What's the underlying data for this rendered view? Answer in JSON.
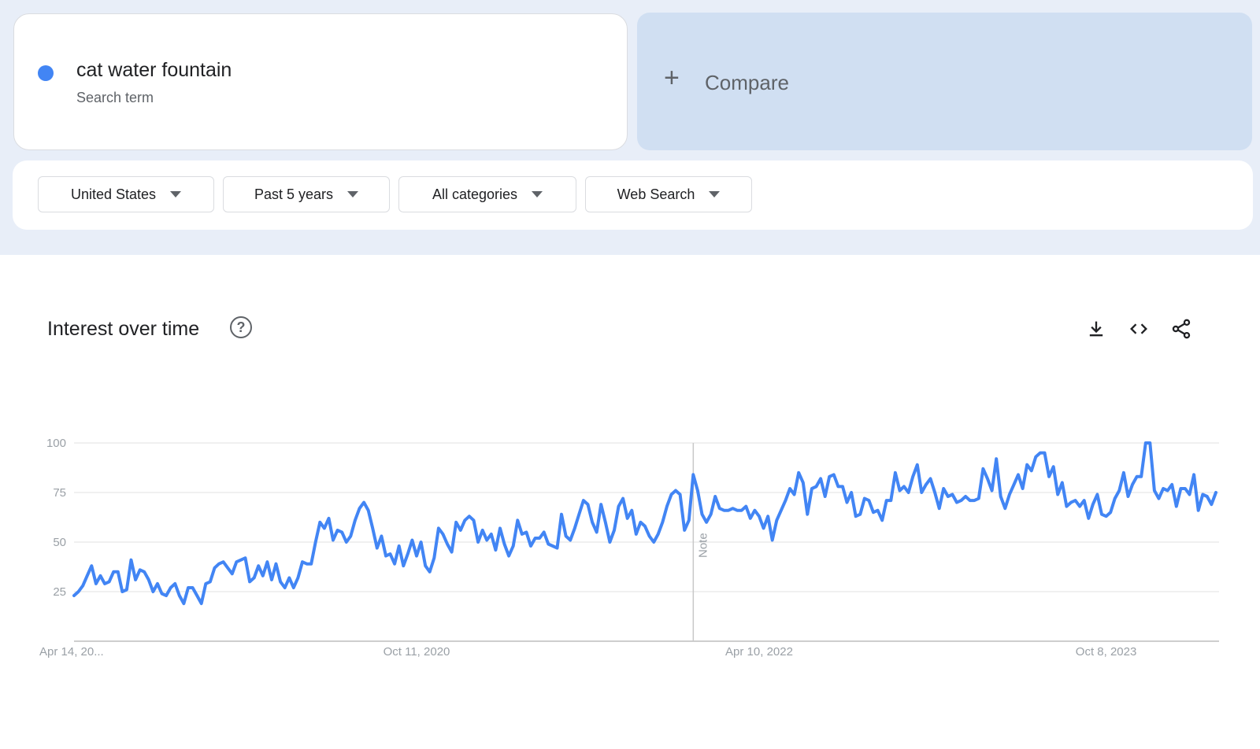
{
  "search_term": {
    "name": "cat water fountain",
    "subtitle": "Search term",
    "color": "#4285f4"
  },
  "compare": {
    "plus": "+",
    "label": "Compare"
  },
  "filters": [
    {
      "label": "United States"
    },
    {
      "label": "Past 5 years"
    },
    {
      "label": "All categories"
    },
    {
      "label": "Web Search"
    }
  ],
  "interest": {
    "title": "Interest over time",
    "help_icon": "?",
    "icons": [
      "download-icon",
      "embed-icon",
      "share-icon"
    ]
  },
  "chart_data": {
    "type": "line",
    "x_tick_labels": [
      "Apr 14, 20...",
      "Oct 11, 2020",
      "Apr 10, 2022",
      "Oct 8, 2023"
    ],
    "y_ticks": [
      25,
      50,
      75,
      100
    ],
    "ylim": [
      0,
      100
    ],
    "grid": true,
    "note_label": "Note",
    "series": [
      {
        "color": "#4285f4",
        "values": [
          23,
          25,
          28,
          33,
          38,
          29,
          33,
          29,
          30,
          35,
          35,
          25,
          26,
          41,
          31,
          36,
          35,
          31,
          25,
          29,
          24,
          23,
          27,
          29,
          23,
          19,
          27,
          27,
          23,
          19,
          29,
          30,
          37,
          39,
          40,
          37,
          34,
          40,
          41,
          42,
          30,
          32,
          38,
          33,
          40,
          31,
          39,
          30,
          27,
          32,
          27,
          32,
          40,
          39,
          39,
          50,
          60,
          57,
          62,
          51,
          56,
          55,
          50,
          53,
          61,
          67,
          70,
          66,
          57,
          47,
          53,
          43,
          44,
          39,
          48,
          38,
          44,
          51,
          43,
          50,
          38,
          35,
          42,
          57,
          54,
          49,
          45,
          60,
          56,
          61,
          63,
          61,
          50,
          56,
          51,
          54,
          46,
          57,
          49,
          43,
          48,
          61,
          54,
          55,
          48,
          52,
          52,
          55,
          49,
          48,
          47,
          64,
          53,
          51,
          57,
          64,
          71,
          69,
          60,
          55,
          69,
          60,
          50,
          56,
          68,
          72,
          62,
          66,
          54,
          60,
          58,
          53,
          50,
          54,
          60,
          68,
          74,
          76,
          74,
          56,
          61,
          84,
          76,
          64,
          60,
          64,
          73,
          67,
          66,
          66,
          67,
          66,
          66,
          68,
          62,
          66,
          63,
          57,
          63,
          51,
          61,
          66,
          71,
          77,
          74,
          85,
          80,
          64,
          77,
          78,
          82,
          73,
          83,
          84,
          78,
          78,
          70,
          75,
          63,
          64,
          72,
          71,
          65,
          66,
          61,
          71,
          71,
          85,
          76,
          78,
          75,
          83,
          89,
          75,
          79,
          82,
          75,
          67,
          77,
          73,
          74,
          70,
          71,
          73,
          71,
          71,
          72,
          87,
          82,
          76,
          92,
          73,
          67,
          74,
          79,
          84,
          77,
          89,
          86,
          93,
          95,
          95,
          83,
          88,
          74,
          80,
          68,
          70,
          71,
          68,
          71,
          62,
          69,
          74,
          64,
          63,
          65,
          72,
          76,
          85,
          73,
          79,
          83,
          83,
          100,
          100,
          76,
          72,
          77,
          76,
          79,
          68,
          77,
          77,
          74,
          84,
          66,
          74,
          73,
          69,
          75
        ]
      }
    ]
  }
}
